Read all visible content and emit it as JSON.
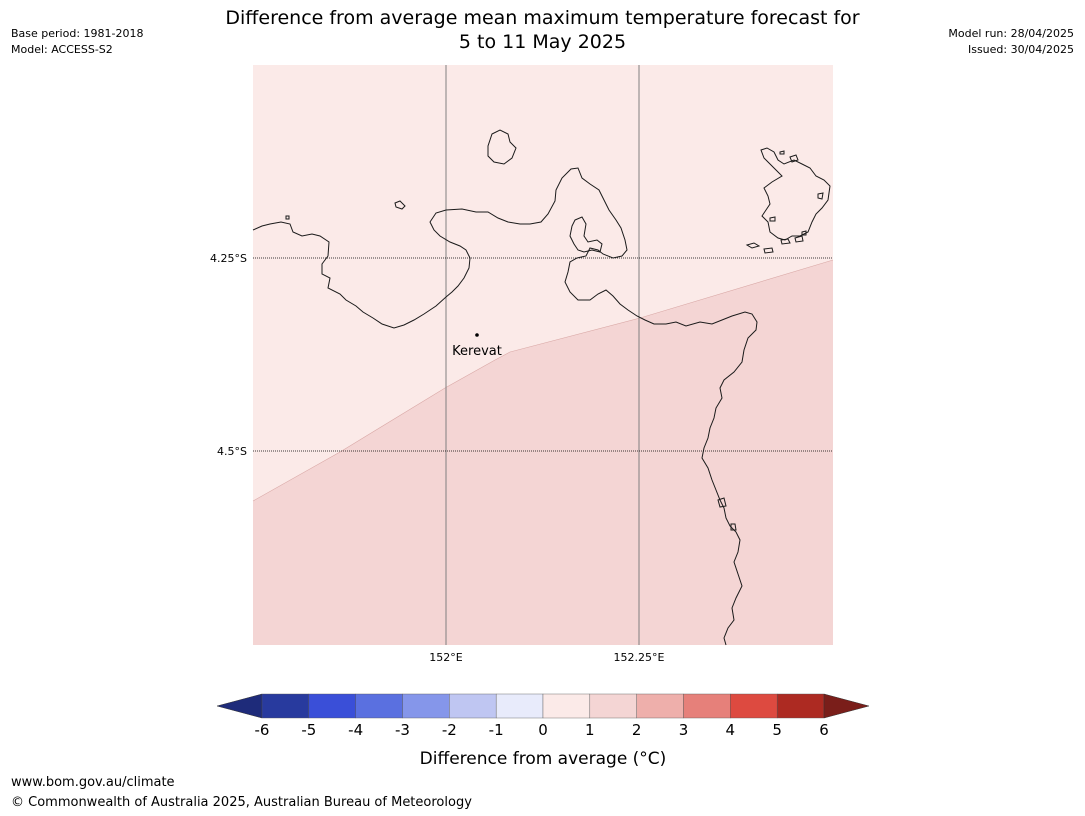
{
  "header": {
    "base_period": "Base period: 1981-2018",
    "model": "Model: ACCESS-S2",
    "model_run": "Model run: 28/04/2025",
    "issued": "Issued: 30/04/2025",
    "title_line1": "Difference from average mean maximum temperature forecast for",
    "title_line2": "5 to 11 May 2025"
  },
  "map": {
    "latitude_labels": [
      "4.25°S",
      "4.5°S"
    ],
    "longitude_labels": [
      "152°E",
      "152.25°E"
    ],
    "place_label": "Kerevat",
    "fill_colors": {
      "zone_0_to_1": "#fbeae8",
      "zone_1_to_2": "#f4d5d4"
    }
  },
  "colorbar": {
    "tick_labels": [
      "-6",
      "-5",
      "-4",
      "-3",
      "-2",
      "-1",
      "0",
      "1",
      "2",
      "3",
      "4",
      "5",
      "6"
    ],
    "colors": [
      "#283a9e",
      "#3a4fd8",
      "#5a70e0",
      "#8596ea",
      "#bfc6f2",
      "#e8ebfb",
      "#fbeae8",
      "#f4d5d4",
      "#eeafab",
      "#e6807a",
      "#dd4a40",
      "#ad2a22"
    ],
    "extend_low_color": "#1e2b7a",
    "extend_high_color": "#7a1e1a",
    "label": "Difference from average (°C)"
  },
  "footer": {
    "url": "www.bom.gov.au/climate",
    "copyright": "© Commonwealth of Australia 2025, Australian Bureau of Meteorology"
  }
}
